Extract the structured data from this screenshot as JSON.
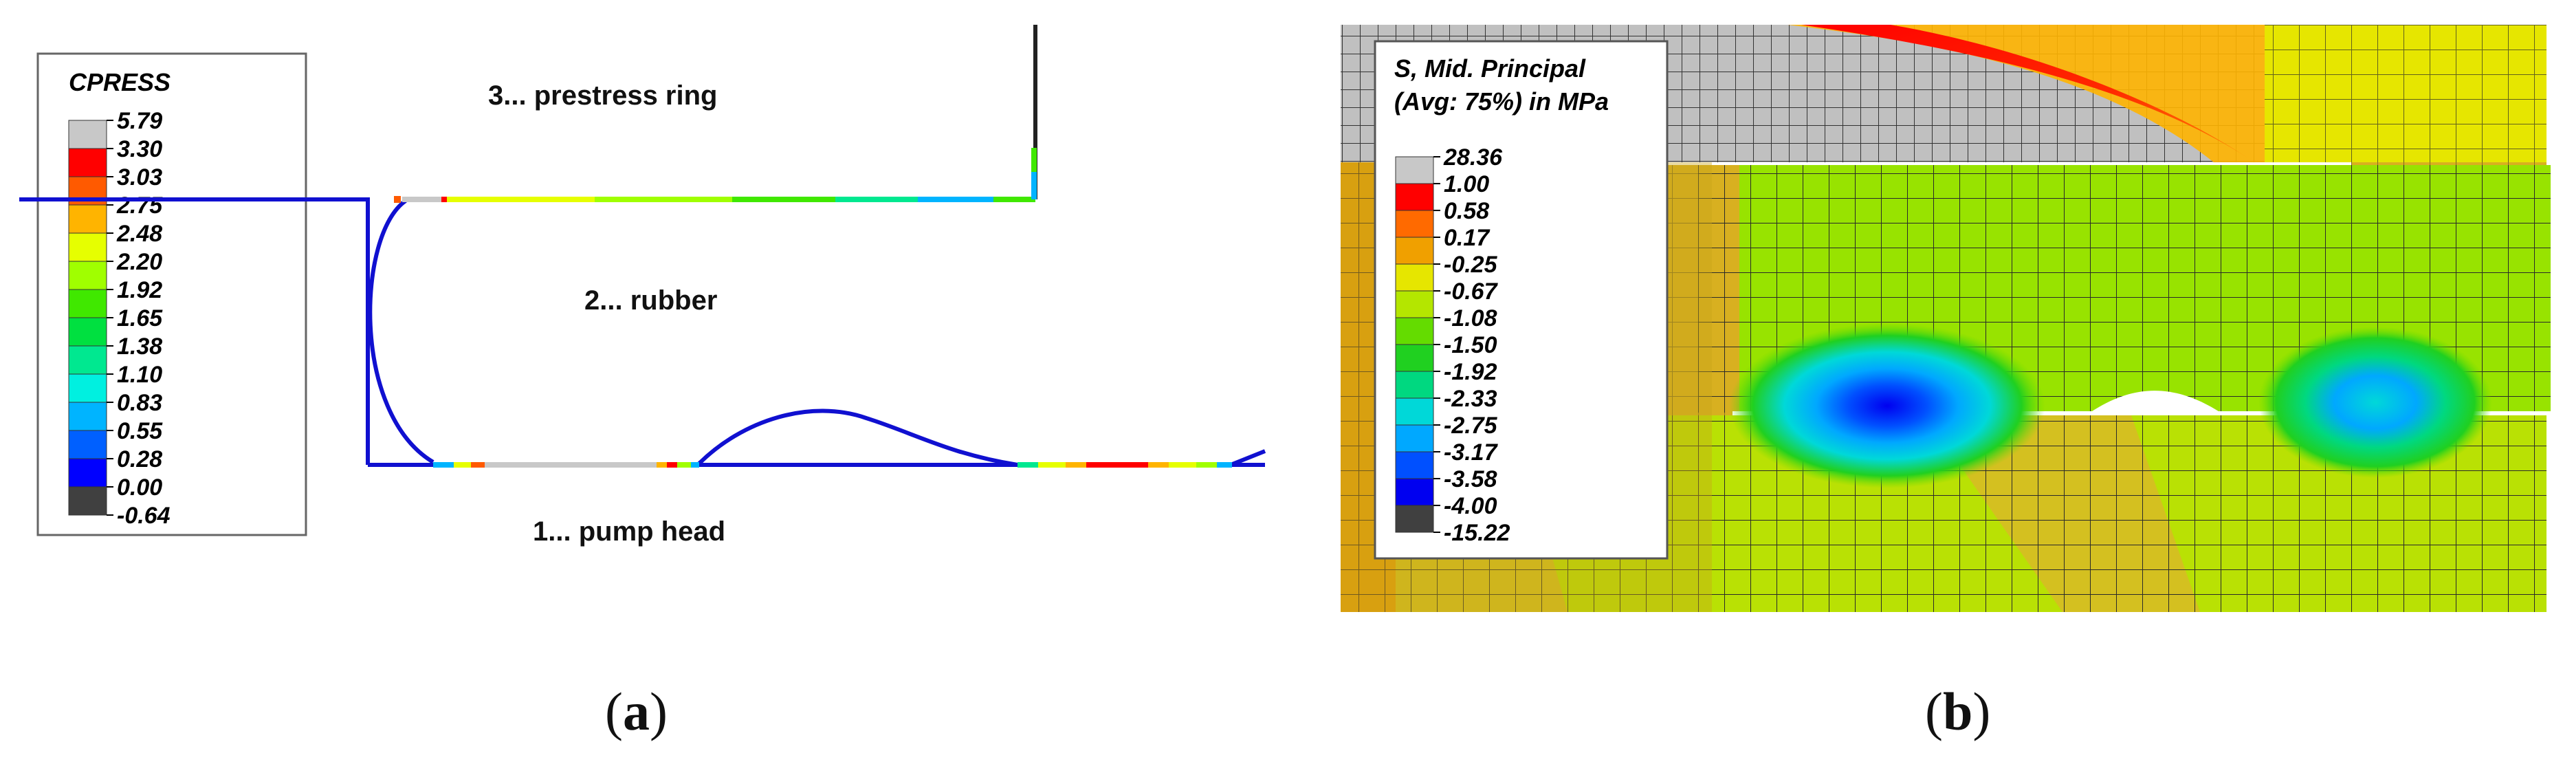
{
  "panel_a": {
    "legend": {
      "title": "CPRESS",
      "values": [
        "5.79",
        "3.30",
        "3.03",
        "2.75",
        "2.48",
        "2.20",
        "1.92",
        "1.65",
        "1.38",
        "1.10",
        "0.83",
        "0.55",
        "0.28",
        "0.00",
        "-0.64"
      ],
      "colors": [
        "#c8c8c8",
        "#ff0000",
        "#ff5a00",
        "#ffb400",
        "#e6ff00",
        "#a0ff00",
        "#40e800",
        "#00e040",
        "#00e890",
        "#00f0e0",
        "#00b4ff",
        "#0060ff",
        "#0000ff",
        "#404040"
      ]
    },
    "labels": {
      "prestress_ring": "3... prestress ring",
      "rubber": "2... rubber",
      "pump_head": "1... pump head"
    },
    "caption": {
      "open": "(",
      "letter": "a",
      "close": ")"
    }
  },
  "panel_b": {
    "legend": {
      "title_line1": "S, Mid. Principal",
      "title_line2": "(Avg: 75%) in MPa",
      "values": [
        "28.36",
        "1.00",
        "0.58",
        "0.17",
        "-0.25",
        "-0.67",
        "-1.08",
        "-1.50",
        "-1.92",
        "-2.33",
        "-2.75",
        "-3.17",
        "-3.58",
        "-4.00",
        "-15.22"
      ],
      "colors": [
        "#c8c8c8",
        "#ff0000",
        "#ff6a00",
        "#f0a000",
        "#e6e600",
        "#b4e600",
        "#64dc00",
        "#20d020",
        "#00d880",
        "#00d8d8",
        "#00a8ff",
        "#0050ff",
        "#0000f0",
        "#404040"
      ]
    },
    "caption": {
      "open": "(",
      "letter": "b",
      "close": ")"
    }
  }
}
